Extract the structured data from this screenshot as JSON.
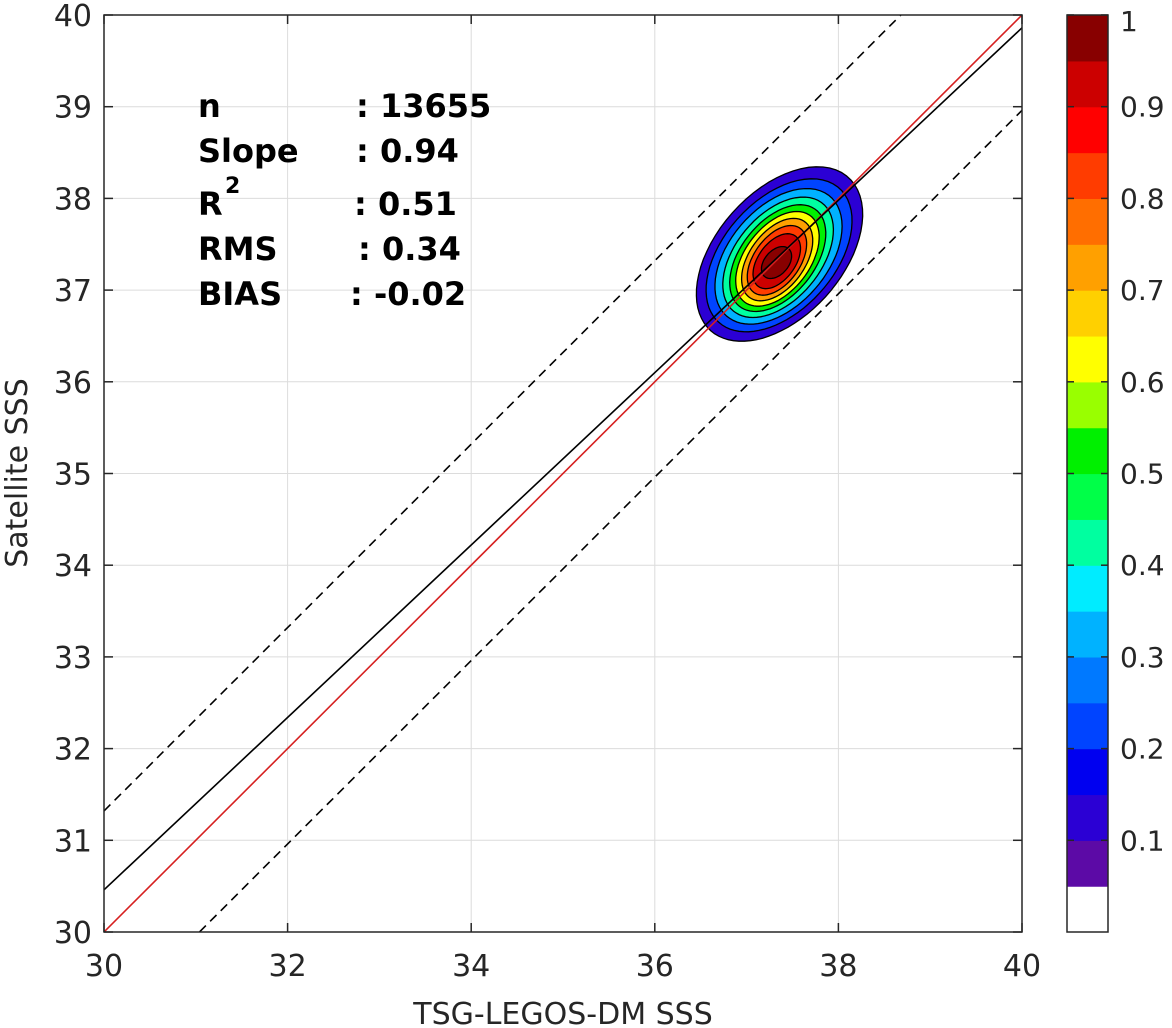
{
  "chart_data": {
    "type": "contour",
    "xlabel": "TSG-LEGOS-DM SSS",
    "ylabel": "Satellite SSS",
    "xlim": [
      30,
      40
    ],
    "ylim": [
      30,
      40
    ],
    "x_ticks": [
      "30",
      "32",
      "34",
      "36",
      "38",
      "40"
    ],
    "y_ticks": [
      "30",
      "31",
      "32",
      "33",
      "34",
      "35",
      "36",
      "37",
      "38",
      "39",
      "40"
    ],
    "grid": true,
    "stats": [
      {
        "label": "n",
        "value": ": 13655"
      },
      {
        "label": "Slope",
        "value": ": 0.94"
      },
      {
        "label": "R",
        "sup": "2",
        "value": ": 0.51"
      },
      {
        "label": "RMS",
        "value": ": 0.34"
      },
      {
        "label": "BIAS",
        "value": ": -0.02"
      }
    ],
    "lines": [
      {
        "kind": "one-to-one",
        "color": "#d62020",
        "slope": 1.0,
        "intercept": 0.0
      },
      {
        "kind": "regression",
        "color": "#000000",
        "slope": 0.94,
        "intercept": 2.26
      },
      {
        "kind": "upper-bound",
        "color": "#000000",
        "dash": true,
        "slope": 1.0,
        "intercept": 1.32
      },
      {
        "kind": "lower-bound",
        "color": "#000000",
        "dash": true,
        "slope": 1.0,
        "intercept": -1.04
      }
    ],
    "density": {
      "center": [
        37.32,
        37.28
      ],
      "levels": [
        {
          "level": 0.05,
          "sx": 0.68,
          "sy": 1.12,
          "tilt": 0.06
        },
        {
          "level": 0.1,
          "sx": 0.6,
          "sy": 0.98,
          "tilt": 0.06
        },
        {
          "level": 0.2,
          "sx": 0.53,
          "sy": 0.86,
          "tilt": 0.08
        },
        {
          "level": 0.3,
          "sx": 0.46,
          "sy": 0.76,
          "tilt": 0.1
        },
        {
          "level": 0.4,
          "sx": 0.4,
          "sy": 0.67,
          "tilt": 0.12
        },
        {
          "level": 0.5,
          "sx": 0.35,
          "sy": 0.59,
          "tilt": 0.14
        },
        {
          "level": 0.6,
          "sx": 0.3,
          "sy": 0.51,
          "tilt": 0.16
        },
        {
          "level": 0.7,
          "sx": 0.25,
          "sy": 0.43,
          "tilt": 0.17
        },
        {
          "level": 0.8,
          "sx": 0.2,
          "sy": 0.34,
          "tilt": 0.16
        },
        {
          "level": 0.9,
          "sx": 0.13,
          "sy": 0.2,
          "tilt": 0.08
        }
      ]
    },
    "colorbar": {
      "ticks": [
        "0.1",
        "0.2",
        "0.3",
        "0.4",
        "0.5",
        "0.6",
        "0.7",
        "0.8",
        "0.9",
        "1"
      ],
      "tick_values": [
        0.1,
        0.2,
        0.3,
        0.4,
        0.5,
        0.6,
        0.7,
        0.8,
        0.9,
        1.0
      ],
      "range": [
        0,
        1
      ],
      "colors": [
        "#ffffff",
        "#5c0aa6",
        "#2b00d4",
        "#0000f0",
        "#0044ff",
        "#0079ff",
        "#00b2ff",
        "#00ecff",
        "#00ffa0",
        "#00ff48",
        "#00f000",
        "#99ff00",
        "#ffff00",
        "#ffd000",
        "#ffa000",
        "#ff6e00",
        "#ff3c00",
        "#ff0000",
        "#cc0000",
        "#880000"
      ]
    }
  }
}
